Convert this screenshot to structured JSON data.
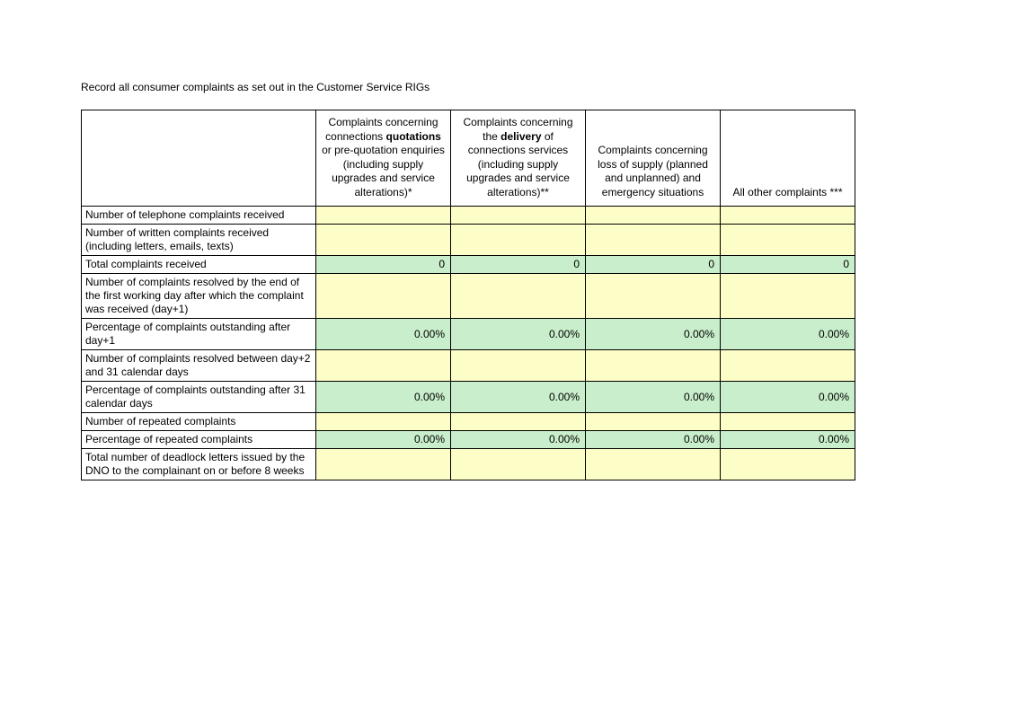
{
  "title": "Record all consumer complaints as set out in the Customer Service RIGs",
  "columns": {
    "c1": {
      "pre": "Complaints concerning connections ",
      "bold": "quotations",
      "post": " or pre-quotation enquiries (including supply upgrades and service alterations)*",
      "width": 150
    },
    "c2": {
      "pre": "Complaints concerning the ",
      "bold": "delivery",
      "post": " of connections services (including supply upgrades and service alterations)**",
      "width": 150
    },
    "c3": {
      "text": "Complaints concerning loss of supply (planned and unplanned) and emergency situations",
      "width": 150
    },
    "c4": {
      "text": "All other complaints ***",
      "width": 150
    }
  },
  "rows": [
    {
      "label": "Number of telephone complaints received",
      "type": "input",
      "v": [
        "",
        "",
        "",
        ""
      ]
    },
    {
      "label": "Number of written complaints received (including letters, emails, texts)",
      "type": "input",
      "v": [
        "",
        "",
        "",
        ""
      ]
    },
    {
      "label": "Total complaints received",
      "type": "calc",
      "v": [
        "0",
        "0",
        "0",
        "0"
      ]
    },
    {
      "label": "Number of complaints resolved by the end of the first working day after which the complaint was received (day+1)",
      "type": "input",
      "v": [
        "",
        "",
        "",
        ""
      ]
    },
    {
      "label": "Percentage of complaints outstanding after day+1",
      "type": "calc",
      "v": [
        "0.00%",
        "0.00%",
        "0.00%",
        "0.00%"
      ]
    },
    {
      "label": "Number of complaints resolved between day+2 and 31 calendar days",
      "type": "input",
      "v": [
        "",
        "",
        "",
        ""
      ]
    },
    {
      "label": "Percentage of complaints outstanding after 31 calendar days",
      "type": "calc",
      "v": [
        "0.00%",
        "0.00%",
        "0.00%",
        "0.00%"
      ]
    },
    {
      "label": "Number of repeated complaints",
      "type": "input",
      "v": [
        "",
        "",
        "",
        ""
      ]
    },
    {
      "label": "Percentage of repeated complaints",
      "type": "calc",
      "v": [
        "0.00%",
        "0.00%",
        "0.00%",
        "0.00%"
      ]
    },
    {
      "label": "Total number of deadlock letters issued by the DNO to the complainant on or before 8 weeks",
      "type": "input",
      "v": [
        "",
        "",
        "",
        ""
      ]
    }
  ],
  "colors": {
    "input_bg": "#fdfdc7",
    "calc_bg": "#c9eecb",
    "border": "#000000",
    "page_bg": "#ffffff"
  },
  "layout": {
    "label_col_width": 252,
    "data_col_width": 150,
    "font_family": "Verdana",
    "font_size_pt": 9
  }
}
